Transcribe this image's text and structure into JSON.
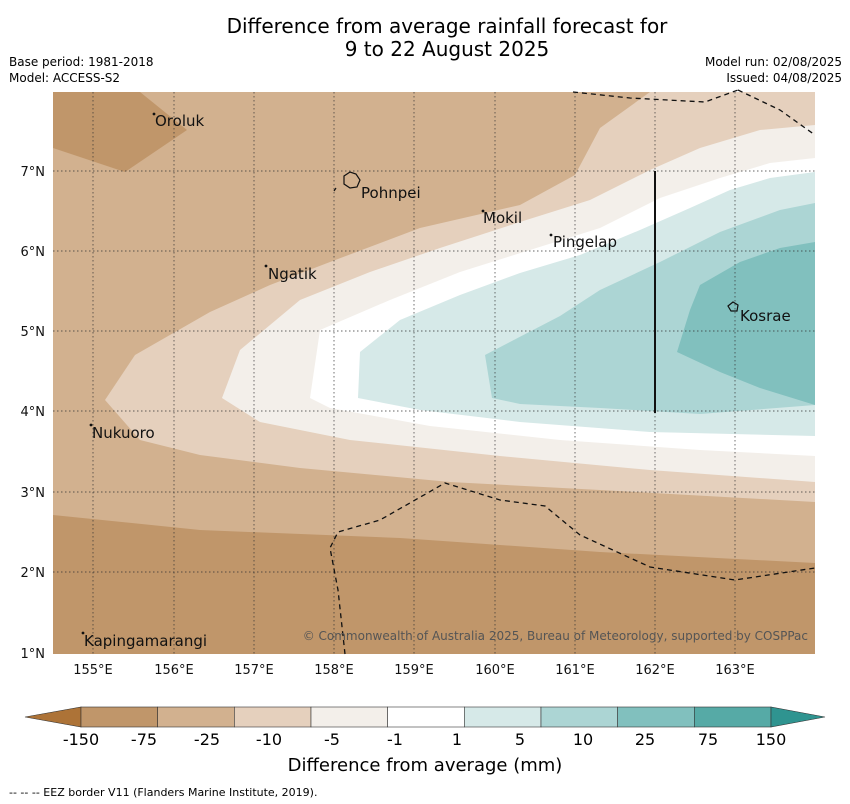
{
  "title": {
    "line1": "Difference from average rainfall forecast for",
    "line2": "9 to 22 August 2025"
  },
  "meta_left": {
    "base_period": "Base period: 1981-2018",
    "model": "Model: ACCESS-S2"
  },
  "meta_right": {
    "model_run": "Model run: 02/08/2025",
    "issued": "Issued: 04/08/2025"
  },
  "axes": {
    "lon_ticks": [
      "155°E",
      "156°E",
      "157°E",
      "158°E",
      "159°E",
      "160°E",
      "161°E",
      "162°E",
      "163°E"
    ],
    "lat_ticks": [
      "7°N",
      "6°N",
      "5°N",
      "4°N",
      "3°N",
      "2°N",
      "1°N"
    ]
  },
  "places": [
    {
      "name": "Oroluk"
    },
    {
      "name": "Pohnpei"
    },
    {
      "name": "Mokil"
    },
    {
      "name": "Pingelap"
    },
    {
      "name": "Ngatik"
    },
    {
      "name": "Kosrae"
    },
    {
      "name": "Nukuoro"
    },
    {
      "name": "Kapingamarangi"
    }
  ],
  "copyright": "© Commonwealth of Australia 2025, Bureau of Meteorology, supported by COSPPac",
  "colorbar": {
    "title": "Difference from average (mm)",
    "labels": [
      "-150",
      "-75",
      "-25",
      "-10",
      "-5",
      "-1",
      "1",
      "5",
      "10",
      "25",
      "75",
      "150"
    ],
    "colors": [
      "#ad7337",
      "#c0966a",
      "#d2b18f",
      "#e5d0bd",
      "#f3efea",
      "#ffffff",
      "#d6e9e8",
      "#acd5d4",
      "#81c0be",
      "#56aaa6",
      "#2f9490"
    ]
  },
  "footer": "--  --  -- EEZ border V11 (Flanders Marine Institute, 2019)."
}
